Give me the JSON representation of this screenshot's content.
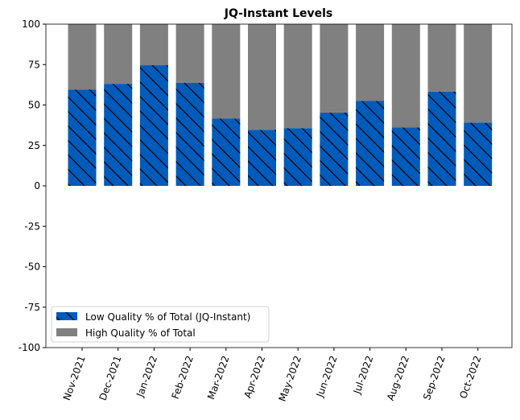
{
  "chart_data": {
    "type": "bar",
    "title": "JQ-Instant Levels",
    "xlabel": "",
    "ylabel": "",
    "ylim": [
      -100,
      100
    ],
    "yticks": [
      100,
      75,
      50,
      25,
      0,
      -25,
      -50,
      -75,
      -100
    ],
    "categories": [
      "Nov-2021",
      "Dec-2021",
      "Jan-2022",
      "Feb-2022",
      "Mar-2022",
      "Apr-2022",
      "May-2022",
      "Jun-2022",
      "Jul-2022",
      "Aug-2022",
      "Sep-2022",
      "Oct-2022"
    ],
    "series": [
      {
        "name": "Low Quality % of Total (JQ-Instant)",
        "color": "#005bbb",
        "hatch": "\\",
        "values": [
          59.6,
          63.1,
          74.6,
          63.8,
          41.7,
          34.7,
          35.7,
          45.3,
          52.5,
          36.1,
          58.3,
          39.1
        ]
      },
      {
        "name": "High Quality % of Total",
        "color": "#808080",
        "values": [
          40.4,
          36.9,
          25.4,
          36.2,
          58.3,
          65.3,
          64.3,
          54.7,
          47.5,
          63.9,
          41.7,
          60.9
        ]
      }
    ],
    "stacked": true,
    "legend_position": "lower-left",
    "grid": false
  }
}
